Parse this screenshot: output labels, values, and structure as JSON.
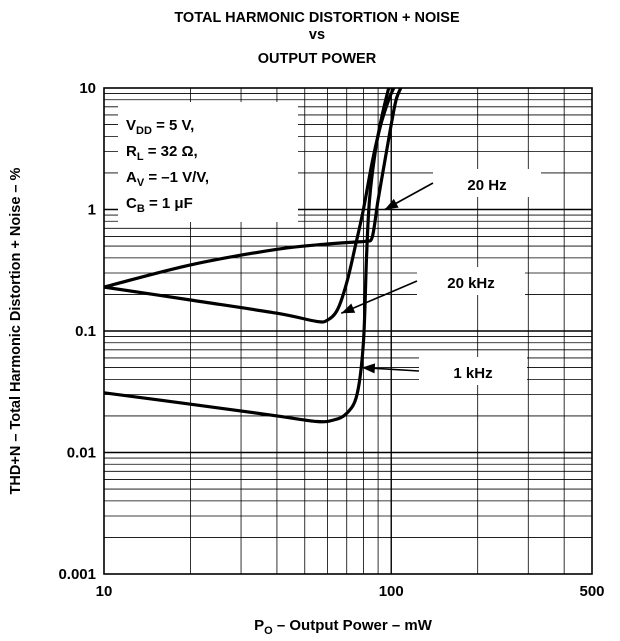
{
  "chart_data": {
    "type": "line",
    "title": [
      "TOTAL HARMONIC DISTORTION + NOISE",
      "vs",
      "OUTPUT POWER"
    ],
    "xlabel": {
      "main": "P",
      "sub": "O",
      "rest": " – Output Power – mW"
    },
    "ylabel": "THD+N – Total Harmonic Distortion + Noise – %",
    "xscale": "log",
    "yscale": "log",
    "xlim": [
      10,
      500
    ],
    "ylim": [
      0.001,
      10
    ],
    "grid": true,
    "xticks": [
      "10",
      "100",
      "500"
    ],
    "yticks": [
      "0.001",
      "0.01",
      "0.1",
      "1",
      "10"
    ],
    "conditions": [
      {
        "main": "V",
        "sub": "DD",
        "rest": " = 5 V,"
      },
      {
        "main": "R",
        "sub": "L",
        "rest": " = 32 Ω,"
      },
      {
        "main": "A",
        "sub": "V",
        "rest": " = –1 V/V,"
      },
      {
        "main": "C",
        "sub": "B",
        "rest": " = 1 μF"
      }
    ],
    "series": [
      {
        "name": "20 Hz",
        "points": [
          [
            10,
            0.23
          ],
          [
            20,
            0.35
          ],
          [
            40,
            0.47
          ],
          [
            60,
            0.52
          ],
          [
            75,
            0.54
          ],
          [
            82,
            0.55
          ],
          [
            86,
            0.6
          ],
          [
            90,
            1.2
          ],
          [
            95,
            2.5
          ],
          [
            100,
            5
          ],
          [
            104,
            8
          ],
          [
            108,
            10
          ]
        ],
        "label_at": [
          95,
          1.0
        ]
      },
      {
        "name": "20 kHz",
        "points": [
          [
            10,
            0.23
          ],
          [
            20,
            0.18
          ],
          [
            40,
            0.14
          ],
          [
            55,
            0.12
          ],
          [
            60,
            0.123
          ],
          [
            65,
            0.15
          ],
          [
            70,
            0.25
          ],
          [
            75,
            0.5
          ],
          [
            80,
            1.0
          ],
          [
            86,
            2.5
          ],
          [
            92,
            5
          ],
          [
            98,
            8
          ],
          [
            102,
            10
          ]
        ],
        "label_at": [
          67,
          0.14
        ]
      },
      {
        "name": "1 kHz",
        "points": [
          [
            10,
            0.031
          ],
          [
            20,
            0.025
          ],
          [
            40,
            0.02
          ],
          [
            55,
            0.018
          ],
          [
            63,
            0.0185
          ],
          [
            70,
            0.021
          ],
          [
            76,
            0.03
          ],
          [
            80,
            0.08
          ],
          [
            82,
            0.4
          ],
          [
            84,
            1.2
          ],
          [
            88,
            3
          ],
          [
            93,
            6
          ],
          [
            98,
            10
          ]
        ],
        "label_at": [
          79,
          0.05
        ]
      }
    ]
  }
}
